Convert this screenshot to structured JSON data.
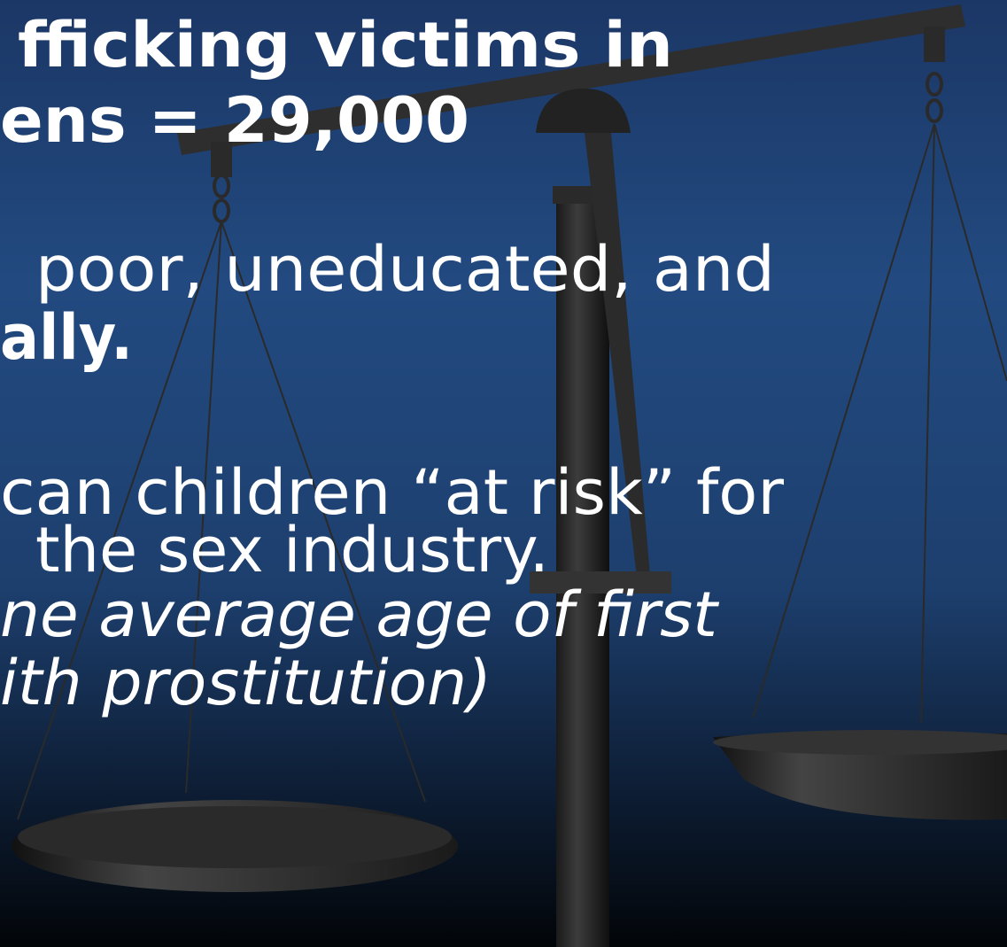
{
  "slide": {
    "lines": [
      "fficking victims in",
      "ens = 29,000",
      "poor, uneducated,  and",
      "ally.",
      "can children “at risk” for",
      "the sex industry.",
      "ne average age of first",
      "ith prostitution)"
    ]
  }
}
